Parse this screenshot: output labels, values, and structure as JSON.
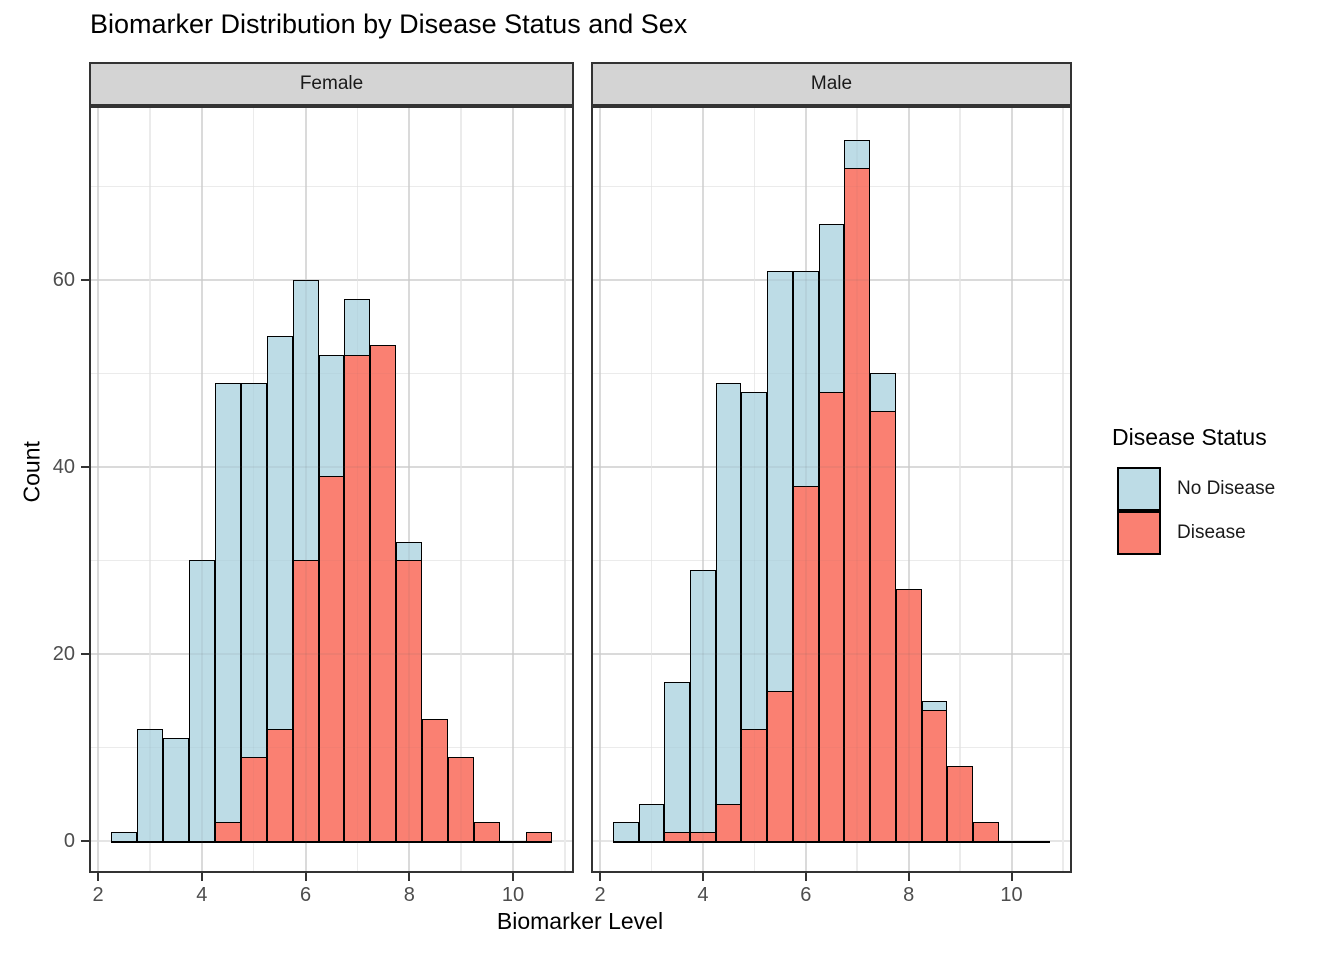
{
  "title": "Biomarker Distribution by Disease Status and Sex",
  "axes": {
    "x_label": "Biomarker Level",
    "y_label": "Count",
    "x_ticks": [
      2,
      4,
      6,
      8,
      10
    ],
    "x_minor_ticks": [
      3,
      5,
      7,
      9,
      11
    ],
    "y_ticks": [
      0,
      20,
      40,
      60
    ],
    "y_minor_ticks": [
      10,
      30,
      50,
      70
    ]
  },
  "legend": {
    "title": "Disease Status",
    "items": [
      {
        "label": "No Disease",
        "color": "#BDDCE6"
      },
      {
        "label": "Disease",
        "color": "#FA8072"
      }
    ]
  },
  "colors": {
    "no_disease_fill": "#BDDCE6",
    "disease_fill": "#FA8072",
    "bar_outline": "#000000",
    "strip_background": "#D4D4D4",
    "panel_border": "#333333",
    "grid_major": "#E5E5E5",
    "grid_minor": "#F2F2F2",
    "tick_text": "#4D4D4D"
  },
  "chart_data": {
    "type": "bar",
    "subtype": "overlaid-histograms-faceted",
    "title": "Biomarker Distribution by Disease Status and Sex",
    "xlabel": "Biomarker Level",
    "ylabel": "Count",
    "bin_width": 0.5,
    "bin_centers": [
      2.5,
      3.0,
      3.5,
      4.0,
      4.5,
      5.0,
      5.5,
      6.0,
      6.5,
      7.0,
      7.5,
      8.0,
      8.5,
      9.0,
      9.5,
      10.0,
      10.5
    ],
    "xlim": [
      1.825,
      11.175
    ],
    "ylim": [
      -3.42,
      78.6
    ],
    "grid": true,
    "legend_position": "right",
    "facets": [
      {
        "label": "Female",
        "series": [
          {
            "name": "No Disease",
            "values": [
              1,
              12,
              11,
              30,
              49,
              49,
              54,
              60,
              52,
              58,
              0,
              32,
              0,
              0,
              0,
              0,
              0
            ]
          },
          {
            "name": "Disease",
            "values": [
              0,
              0,
              0,
              0,
              2,
              9,
              12,
              30,
              39,
              52,
              53,
              30,
              13,
              9,
              2,
              0,
              1
            ]
          }
        ]
      },
      {
        "label": "Male",
        "series": [
          {
            "name": "No Disease",
            "values": [
              2,
              4,
              17,
              29,
              49,
              48,
              61,
              61,
              66,
              75,
              50,
              0,
              15,
              0,
              0,
              0,
              0
            ]
          },
          {
            "name": "Disease",
            "values": [
              0,
              0,
              1,
              1,
              4,
              12,
              16,
              38,
              48,
              72,
              46,
              27,
              14,
              8,
              2,
              0,
              0
            ]
          }
        ]
      }
    ]
  }
}
